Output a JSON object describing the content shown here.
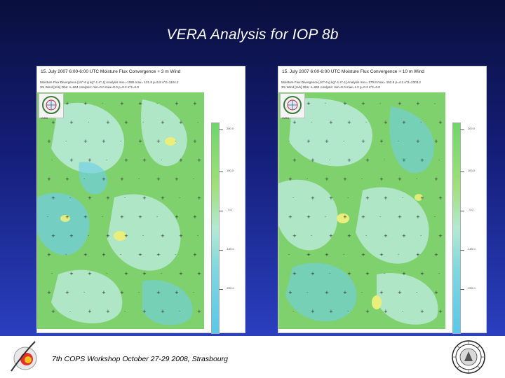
{
  "slide": {
    "title": "VERA Analysis for IOP 8b",
    "footer": "7th COPS Workshop October 27-29 2008, Strasbourg"
  },
  "panels": [
    {
      "header": "15. July 2007 6:00-6:00 UTC Moisture Flux Convergence + 3 m Wind",
      "info_line1": "Moisture Flux Divergence [10^-6 g kg^-1 s^-1]   Analysis  min=-1085  max= 121.8  p=5.8  s^2=1104.2",
      "info_line2": "3m Wind [m/s]  Obs: n=664  Analysis: min=0.0  max=0.0  p=0.3  s^2=0.0",
      "logo_label": "VeRA",
      "colorbar_ticks": [
        "200.0",
        "100.0",
        "0.0",
        "-100.0",
        "-200.0"
      ]
    },
    {
      "header": "15. July 2007 6:00-6:00 UTC Moisture Flux Convergence + 10 m Wind",
      "info_line1": "Moisture Flux Divergence [10^-6 g kg^-1 s^-1]   Analysis  min=-170.8  max= 152.8  p=4.2  s^2=2303.2",
      "info_line2": "3m Wind [m/s]  Obs: n=664  Analysis: min=0.0  max=1.2  p=0.3  s^2=0.0",
      "logo_label": "VeRA",
      "colorbar_ticks": [
        "200.0",
        "100.0",
        "0.0",
        "-100.0",
        "-200.0"
      ]
    }
  ],
  "icons": {
    "left_logo": "circular-swoosh-logo-icon",
    "right_logo": "university-seal-icon"
  },
  "colors": {
    "slide_top": "#0a0f3c",
    "slide_bottom": "#2a3fbf",
    "field_green": "#7fd16e",
    "field_light": "#b7ead6",
    "field_cyan": "#6fcfe6",
    "field_yellow": "#e9ef7a"
  }
}
